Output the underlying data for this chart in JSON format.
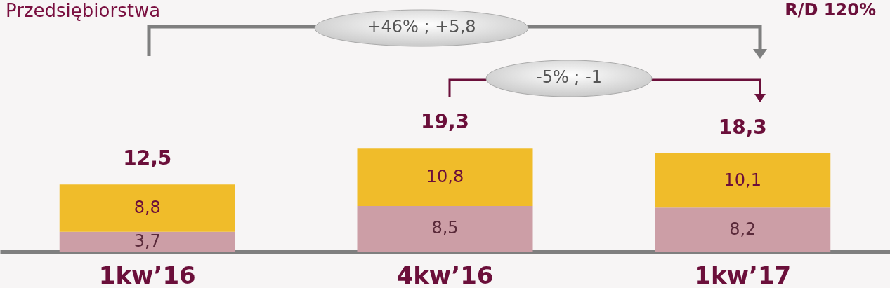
{
  "chart_data": {
    "type": "bar",
    "title": "Przedsiębiorstwa",
    "stacked": true,
    "categories": [
      "1kw’16",
      "4kw’16",
      "1kw’17"
    ],
    "series": [
      {
        "color": "#cc9ea6",
        "values": [
          3.7,
          8.5,
          8.2
        ],
        "value_labels": [
          "3,7",
          "8,5",
          "8,2"
        ]
      },
      {
        "color": "#f0bc2a",
        "values": [
          8.8,
          10.8,
          10.1
        ],
        "value_labels": [
          "8,8",
          "10,8",
          "10,1"
        ]
      }
    ],
    "totals": [
      "12,5",
      "19,3",
      "18,3"
    ],
    "annotations": [
      "R/D 120%",
      "+46% ; +5,8",
      "-5% ; -1"
    ]
  }
}
